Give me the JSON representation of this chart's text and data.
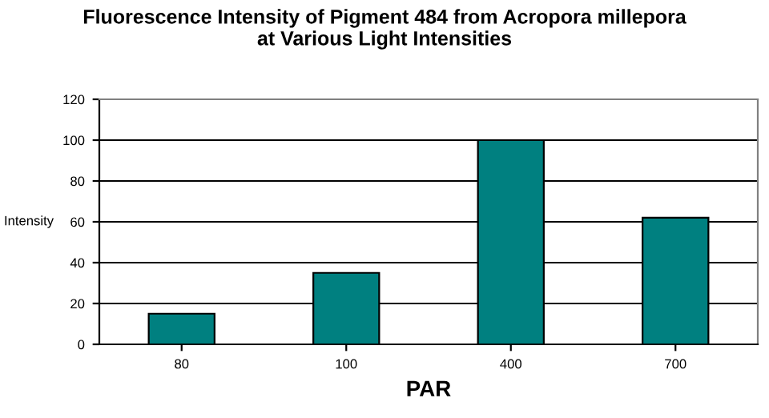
{
  "chart_data": {
    "type": "bar",
    "title": "Fluorescence Intensity of Pigment 484 from Acropora millepora\nat Various Light Intensities",
    "xlabel": "PAR",
    "ylabel": "Intensity",
    "categories": [
      "80",
      "100",
      "400",
      "700"
    ],
    "values": [
      15,
      35,
      100,
      62
    ],
    "color": "#008080",
    "ylim": [
      0,
      120
    ],
    "yticks": [
      0,
      20,
      40,
      60,
      80,
      100,
      120
    ],
    "grid": "y"
  }
}
